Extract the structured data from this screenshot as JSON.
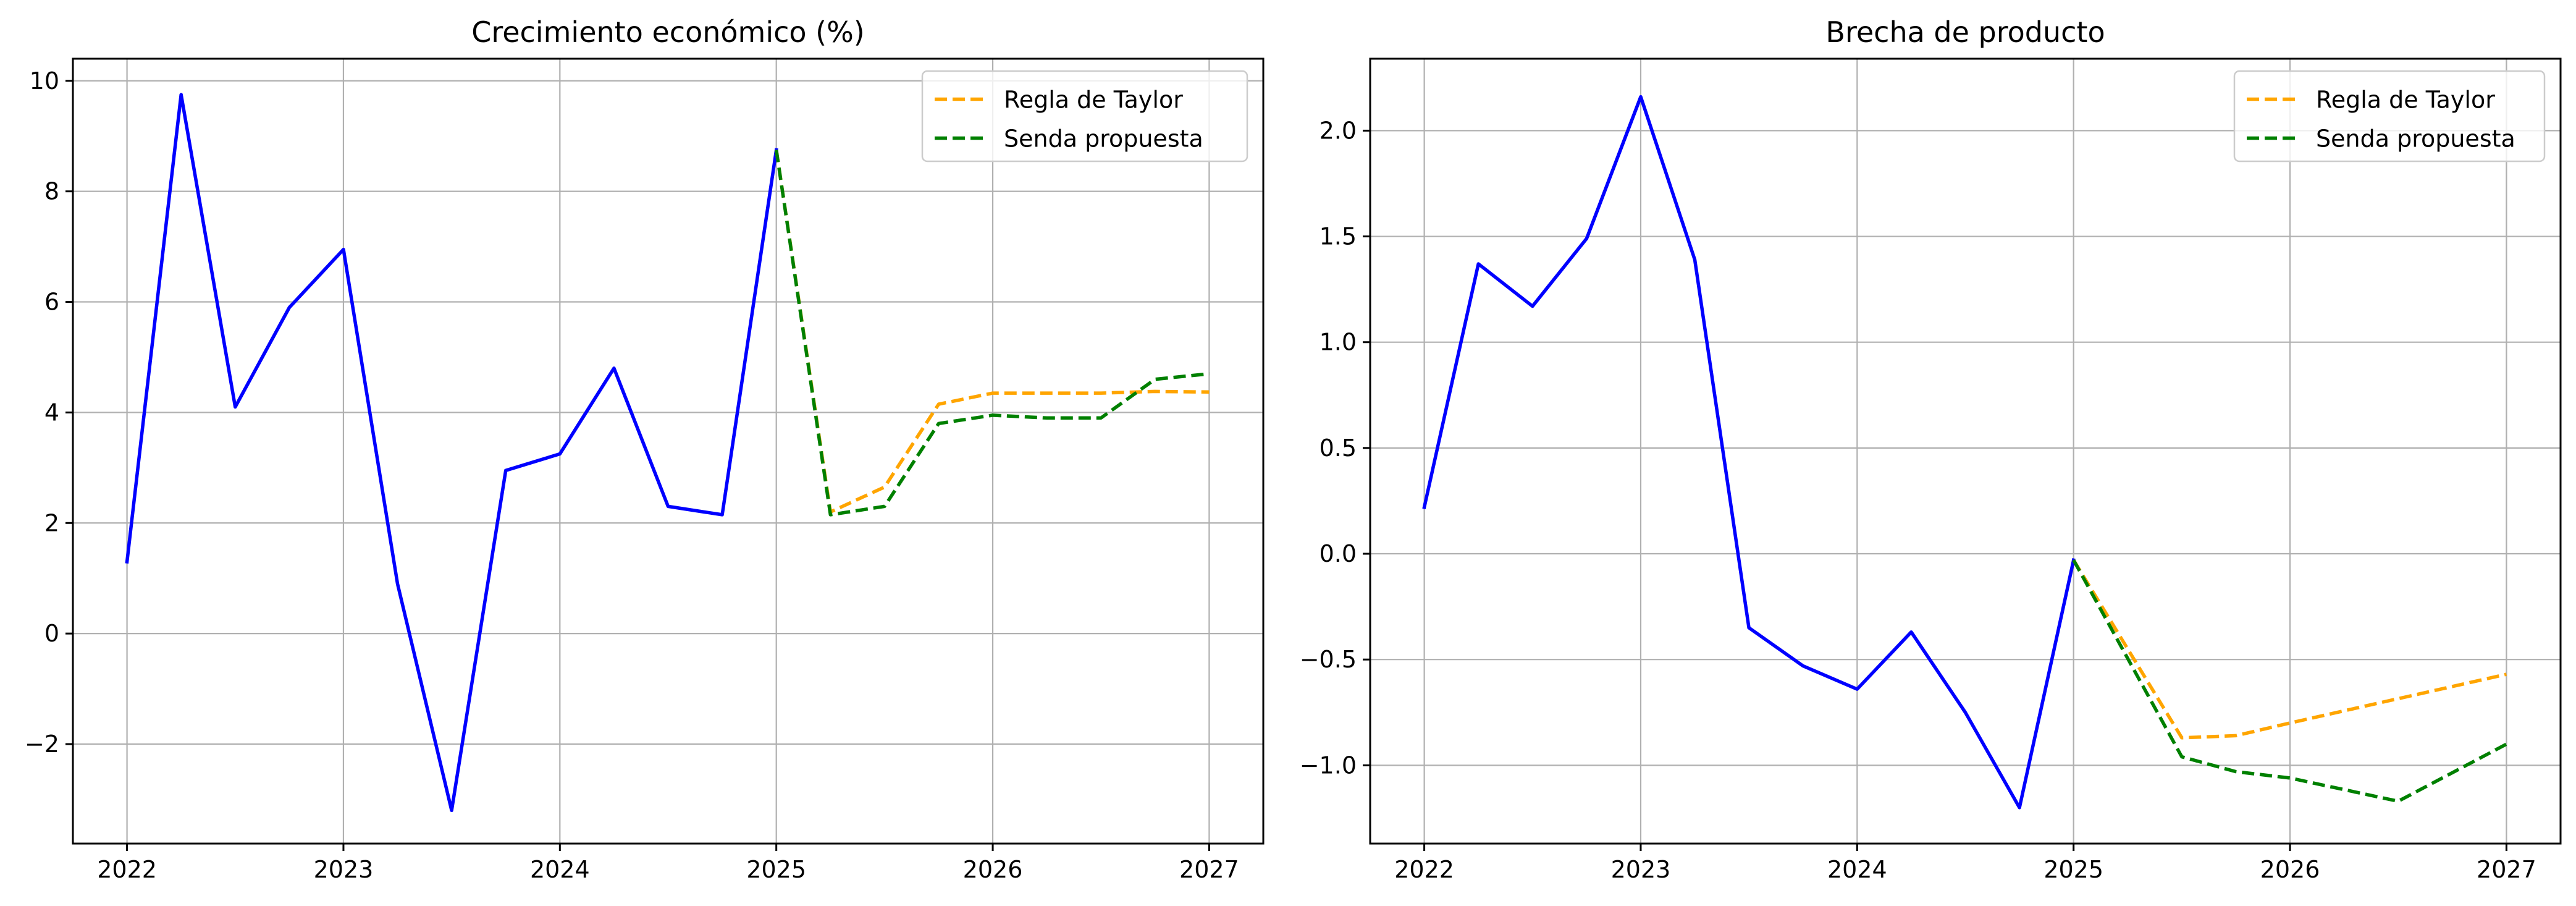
{
  "colors": {
    "historical": "#0000ff",
    "taylor": "#ffa500",
    "proposed": "#008000",
    "grid": "#b0b0b0",
    "axes": "#000000",
    "background": "#ffffff"
  },
  "chart_data": [
    {
      "type": "line",
      "title": "Crecimiento económico (%)",
      "xlabel": "",
      "ylabel": "",
      "xlim": [
        2021.75,
        2027.25
      ],
      "ylim": [
        -3.8,
        10.4
      ],
      "xticks": [
        2022,
        2023,
        2024,
        2025,
        2026,
        2027
      ],
      "xtick_labels": [
        "2022",
        "2023",
        "2024",
        "2025",
        "2026",
        "2027"
      ],
      "yticks": [
        -2,
        0,
        2,
        4,
        6,
        8,
        10
      ],
      "ytick_labels": [
        "−2",
        "0",
        "2",
        "4",
        "6",
        "8",
        "10"
      ],
      "grid": true,
      "legend_position": "top-right",
      "series": [
        {
          "key": "historical",
          "style": "solid",
          "x": [
            2022.0,
            2022.25,
            2022.5,
            2022.75,
            2023.0,
            2023.25,
            2023.5,
            2023.75,
            2024.0,
            2024.25,
            2024.5,
            2024.75,
            2025.0
          ],
          "y": [
            1.3,
            9.75,
            4.1,
            5.9,
            6.95,
            0.9,
            -3.2,
            2.95,
            3.25,
            4.8,
            2.3,
            2.15,
            8.75
          ]
        },
        {
          "key": "taylor",
          "name": "Regla de Taylor",
          "style": "dashed",
          "x": [
            2025.0,
            2025.25,
            2025.5,
            2025.75,
            2026.0,
            2026.25,
            2026.5,
            2026.75,
            2027.0
          ],
          "y": [
            8.75,
            2.2,
            2.65,
            4.15,
            4.35,
            4.35,
            4.35,
            4.38,
            4.37
          ]
        },
        {
          "key": "proposed",
          "name": "Senda propuesta",
          "style": "dashed",
          "x": [
            2025.0,
            2025.25,
            2025.5,
            2025.75,
            2026.0,
            2026.25,
            2026.5,
            2026.75,
            2027.0
          ],
          "y": [
            8.75,
            2.15,
            2.3,
            3.8,
            3.95,
            3.9,
            3.9,
            4.6,
            4.7
          ]
        }
      ]
    },
    {
      "type": "line",
      "title": "Brecha de producto",
      "xlabel": "",
      "ylabel": "",
      "xlim": [
        2021.75,
        2027.25
      ],
      "ylim": [
        -1.37,
        2.34
      ],
      "xticks": [
        2022,
        2023,
        2024,
        2025,
        2026,
        2027
      ],
      "xtick_labels": [
        "2022",
        "2023",
        "2024",
        "2025",
        "2026",
        "2027"
      ],
      "yticks": [
        -1.0,
        -0.5,
        0.0,
        0.5,
        1.0,
        1.5,
        2.0
      ],
      "ytick_labels": [
        "−1.0",
        "−0.5",
        "0.0",
        "0.5",
        "1.0",
        "1.5",
        "2.0"
      ],
      "grid": true,
      "legend_position": "top-right",
      "series": [
        {
          "key": "historical",
          "style": "solid",
          "x": [
            2022.0,
            2022.25,
            2022.5,
            2022.75,
            2023.0,
            2023.25,
            2023.5,
            2023.75,
            2024.0,
            2024.25,
            2024.5,
            2024.75,
            2025.0
          ],
          "y": [
            0.22,
            1.37,
            1.17,
            1.49,
            2.16,
            1.39,
            -0.35,
            -0.53,
            -0.64,
            -0.37,
            -0.75,
            -1.2,
            -0.03
          ]
        },
        {
          "key": "taylor",
          "name": "Regla de Taylor",
          "style": "dashed",
          "x": [
            2025.0,
            2025.5,
            2025.75,
            2026.0,
            2027.0
          ],
          "y": [
            -0.03,
            -0.87,
            -0.86,
            -0.8,
            -0.57
          ]
        },
        {
          "key": "proposed",
          "name": "Senda propuesta",
          "style": "dashed",
          "x": [
            2025.0,
            2025.5,
            2025.75,
            2026.0,
            2026.5,
            2027.0
          ],
          "y": [
            -0.03,
            -0.96,
            -1.03,
            -1.06,
            -1.17,
            -0.9
          ]
        }
      ]
    }
  ]
}
